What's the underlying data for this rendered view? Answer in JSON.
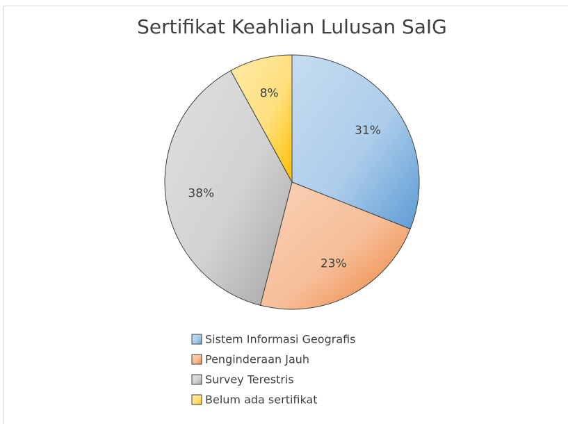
{
  "chart_data": {
    "type": "pie",
    "title": "Sertifikat Keahlian Lulusan SaIG",
    "categories": [
      "Sistem Informasi Geografis",
      "Penginderaan Jauh",
      "Survey Terestris",
      "Belum ada sertifikat"
    ],
    "values": [
      31,
      23,
      38,
      8
    ],
    "value_labels": [
      "31%",
      "23%",
      "38%",
      "8%"
    ],
    "colors": [
      "#5b9bd5",
      "#ed7d31",
      "#a5a5a5",
      "#ffc000"
    ],
    "legend": "bottom"
  }
}
